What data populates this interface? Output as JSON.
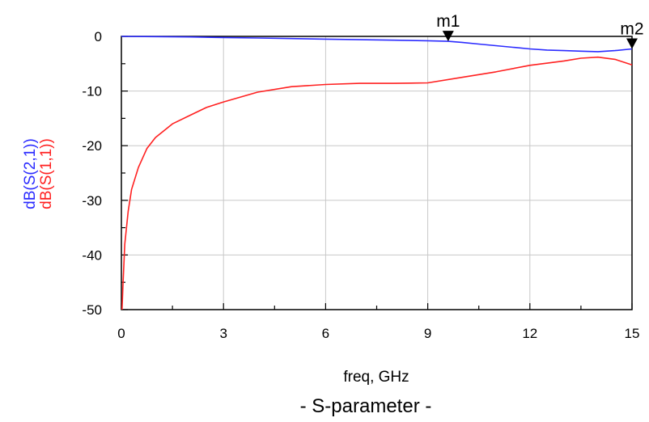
{
  "chart_data": {
    "type": "line",
    "caption": "- S-parameter -",
    "xlabel": "freq, GHz",
    "ylabels": [
      "dB(S(2,1))",
      "dB(S(1,1))"
    ],
    "xlim": [
      0,
      15
    ],
    "ylim": [
      -50,
      0
    ],
    "x_ticks": [
      0,
      3,
      6,
      9,
      12,
      15
    ],
    "y_ticks": [
      0,
      -10,
      -20,
      -30,
      -40,
      -50
    ],
    "grid": true,
    "series": [
      {
        "name": "dB(S(2,1))",
        "color": "#2b2bff",
        "x": [
          0,
          1,
          2,
          3,
          4,
          5,
          6,
          7,
          8,
          9,
          9.6,
          10,
          10.5,
          11,
          11.5,
          12,
          12.5,
          13,
          13.5,
          14,
          14.5,
          15
        ],
        "y": [
          0,
          -0.05,
          -0.1,
          -0.2,
          -0.3,
          -0.4,
          -0.5,
          -0.6,
          -0.7,
          -0.8,
          -0.9,
          -1.1,
          -1.4,
          -1.7,
          -2.0,
          -2.3,
          -2.5,
          -2.6,
          -2.7,
          -2.8,
          -2.6,
          -2.3
        ]
      },
      {
        "name": "dB(S(1,1))",
        "color": "#ff2020",
        "x": [
          0.02,
          0.05,
          0.1,
          0.2,
          0.3,
          0.5,
          0.75,
          1,
          1.5,
          2,
          2.5,
          3,
          4,
          5,
          6,
          7,
          8,
          9,
          10,
          11,
          12,
          13,
          13.5,
          14,
          14.5,
          15
        ],
        "y": [
          -50,
          -45,
          -38,
          -32,
          -28,
          -24,
          -20.5,
          -18.5,
          -16,
          -14.5,
          -13,
          -12,
          -10.2,
          -9.2,
          -8.8,
          -8.6,
          -8.6,
          -8.5,
          -7.5,
          -6.5,
          -5.3,
          -4.5,
          -4.0,
          -3.8,
          -4.2,
          -5.2
        ]
      }
    ],
    "markers": [
      {
        "label": "m1",
        "x": 9.6,
        "series": "dB(S(2,1))"
      },
      {
        "label": "m2",
        "x": 15,
        "series": "dB(S(2,1))"
      }
    ]
  }
}
